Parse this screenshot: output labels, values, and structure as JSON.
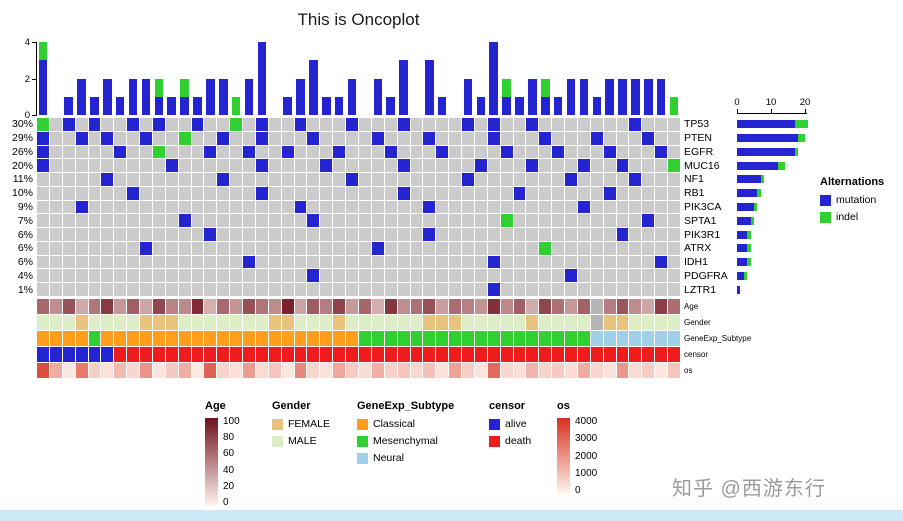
{
  "title": "This is Oncoplot",
  "watermark": "知乎 @西游东行",
  "colors": {
    "mutation": "#2424d0",
    "indel": "#30d030",
    "empty": "#cbcbcb",
    "na": "#b5b5b5",
    "classical": "#ff9e1b",
    "mesenchymal": "#30d030",
    "neural": "#9fd0e8",
    "female": "#e8c37e",
    "male": "#ddeec6",
    "alive": "#2424d0",
    "death": "#ee1c1c",
    "age_high": "#70101c",
    "age_low": "#fff5f0",
    "os_high": "#d7301f",
    "os_low": "#fff5f0",
    "footer_strip": "#cde9f8"
  },
  "legends": {
    "alternations": {
      "title": "Alternations",
      "items": [
        {
          "label": "mutation",
          "color_key": "mutation"
        },
        {
          "label": "indel",
          "color_key": "indel"
        }
      ]
    },
    "age": {
      "title": "Age",
      "ticks": [
        100,
        80,
        60,
        40,
        20,
        0
      ]
    },
    "gender": {
      "title": "Gender",
      "items": [
        {
          "label": "FEMALE",
          "color_key": "female"
        },
        {
          "label": "MALE",
          "color_key": "male"
        }
      ]
    },
    "subtype": {
      "title": "GeneExp_Subtype",
      "items": [
        {
          "label": "Classical",
          "color_key": "classical"
        },
        {
          "label": "Mesenchymal",
          "color_key": "mesenchymal"
        },
        {
          "label": "Neural",
          "color_key": "neural"
        }
      ]
    },
    "censor": {
      "title": "censor",
      "items": [
        {
          "label": "alive",
          "color_key": "alive"
        },
        {
          "label": "death",
          "color_key": "death"
        }
      ]
    },
    "os": {
      "title": "os",
      "ticks": [
        4000,
        3000,
        2000,
        1000,
        0
      ]
    }
  },
  "chart_data": {
    "type": "heatmap",
    "subtype": "oncoplot",
    "genes": [
      "TP53",
      "PTEN",
      "EGFR",
      "MUC16",
      "NF1",
      "RB1",
      "PIK3CA",
      "SPTA1",
      "PIK3R1",
      "ATRX",
      "IDH1",
      "PDGFRA",
      "LZTR1"
    ],
    "gene_percentages": [
      "30%",
      "29%",
      "26%",
      "20%",
      "11%",
      "10%",
      "9%",
      "7%",
      "6%",
      "6%",
      "6%",
      "4%",
      "1%"
    ],
    "n_samples": 50,
    "cell_encoding": {
      "0": "none",
      "1": "mutation",
      "2": "indel"
    },
    "matrix": [
      [
        2,
        0,
        1,
        0,
        1,
        0,
        0,
        1,
        0,
        1,
        0,
        0,
        1,
        0,
        0,
        2,
        0,
        1,
        0,
        0,
        1,
        0,
        0,
        0,
        1,
        0,
        0,
        0,
        1,
        0,
        0,
        0,
        0,
        1,
        0,
        1,
        0,
        0,
        1,
        0,
        0,
        0,
        0,
        0,
        0,
        0,
        1,
        0,
        0,
        0
      ],
      [
        1,
        0,
        0,
        1,
        0,
        1,
        0,
        0,
        1,
        0,
        0,
        2,
        0,
        0,
        1,
        0,
        0,
        1,
        0,
        0,
        0,
        1,
        0,
        0,
        0,
        0,
        1,
        0,
        0,
        0,
        1,
        0,
        0,
        0,
        0,
        1,
        0,
        0,
        0,
        1,
        0,
        0,
        0,
        1,
        0,
        0,
        0,
        1,
        0,
        0
      ],
      [
        1,
        0,
        0,
        0,
        0,
        0,
        1,
        0,
        0,
        2,
        0,
        0,
        0,
        1,
        0,
        0,
        1,
        0,
        0,
        1,
        0,
        0,
        0,
        1,
        0,
        0,
        0,
        1,
        0,
        0,
        0,
        1,
        0,
        0,
        0,
        0,
        1,
        0,
        0,
        0,
        1,
        0,
        0,
        0,
        1,
        0,
        0,
        0,
        1,
        0
      ],
      [
        1,
        0,
        0,
        0,
        0,
        0,
        0,
        0,
        0,
        0,
        1,
        0,
        0,
        0,
        0,
        0,
        0,
        1,
        0,
        0,
        0,
        0,
        1,
        0,
        0,
        0,
        0,
        0,
        1,
        0,
        0,
        0,
        0,
        0,
        1,
        0,
        0,
        0,
        1,
        0,
        0,
        0,
        1,
        0,
        0,
        1,
        0,
        0,
        0,
        2
      ],
      [
        0,
        0,
        0,
        0,
        0,
        1,
        0,
        0,
        0,
        0,
        0,
        0,
        0,
        0,
        1,
        0,
        0,
        0,
        0,
        0,
        0,
        0,
        0,
        0,
        1,
        0,
        0,
        0,
        0,
        0,
        0,
        0,
        0,
        1,
        0,
        0,
        0,
        0,
        0,
        0,
        0,
        1,
        0,
        0,
        0,
        0,
        1,
        0,
        0,
        0
      ],
      [
        0,
        0,
        0,
        0,
        0,
        0,
        0,
        1,
        0,
        0,
        0,
        0,
        0,
        0,
        0,
        0,
        0,
        1,
        0,
        0,
        0,
        0,
        0,
        0,
        0,
        0,
        0,
        0,
        1,
        0,
        0,
        0,
        0,
        0,
        0,
        0,
        0,
        1,
        0,
        0,
        0,
        0,
        0,
        0,
        1,
        0,
        0,
        0,
        0,
        0
      ],
      [
        0,
        0,
        0,
        1,
        0,
        0,
        0,
        0,
        0,
        0,
        0,
        0,
        0,
        0,
        0,
        0,
        0,
        0,
        0,
        0,
        1,
        0,
        0,
        0,
        0,
        0,
        0,
        0,
        0,
        0,
        1,
        0,
        0,
        0,
        0,
        0,
        0,
        0,
        0,
        0,
        0,
        0,
        1,
        0,
        0,
        0,
        0,
        0,
        0,
        0
      ],
      [
        0,
        0,
        0,
        0,
        0,
        0,
        0,
        0,
        0,
        0,
        0,
        1,
        0,
        0,
        0,
        0,
        0,
        0,
        0,
        0,
        0,
        1,
        0,
        0,
        0,
        0,
        0,
        0,
        0,
        0,
        0,
        0,
        0,
        0,
        0,
        0,
        2,
        0,
        0,
        0,
        0,
        0,
        0,
        0,
        0,
        0,
        0,
        1,
        0,
        0
      ],
      [
        0,
        0,
        0,
        0,
        0,
        0,
        0,
        0,
        0,
        0,
        0,
        0,
        0,
        1,
        0,
        0,
        0,
        0,
        0,
        0,
        0,
        0,
        0,
        0,
        0,
        0,
        0,
        0,
        0,
        0,
        1,
        0,
        0,
        0,
        0,
        0,
        0,
        0,
        0,
        0,
        0,
        0,
        0,
        0,
        0,
        1,
        0,
        0,
        0,
        0
      ],
      [
        0,
        0,
        0,
        0,
        0,
        0,
        0,
        0,
        1,
        0,
        0,
        0,
        0,
        0,
        0,
        0,
        0,
        0,
        0,
        0,
        0,
        0,
        0,
        0,
        0,
        0,
        1,
        0,
        0,
        0,
        0,
        0,
        0,
        0,
        0,
        0,
        0,
        0,
        0,
        2,
        0,
        0,
        0,
        0,
        0,
        0,
        0,
        0,
        0,
        0
      ],
      [
        0,
        0,
        0,
        0,
        0,
        0,
        0,
        0,
        0,
        0,
        0,
        0,
        0,
        0,
        0,
        0,
        1,
        0,
        0,
        0,
        0,
        0,
        0,
        0,
        0,
        0,
        0,
        0,
        0,
        0,
        0,
        0,
        0,
        0,
        0,
        1,
        0,
        0,
        0,
        0,
        0,
        0,
        0,
        0,
        0,
        0,
        0,
        0,
        1,
        0
      ],
      [
        0,
        0,
        0,
        0,
        0,
        0,
        0,
        0,
        0,
        0,
        0,
        0,
        0,
        0,
        0,
        0,
        0,
        0,
        0,
        0,
        0,
        1,
        0,
        0,
        0,
        0,
        0,
        0,
        0,
        0,
        0,
        0,
        0,
        0,
        0,
        0,
        0,
        0,
        0,
        0,
        0,
        1,
        0,
        0,
        0,
        0,
        0,
        0,
        0,
        0
      ],
      [
        0,
        0,
        0,
        0,
        0,
        0,
        0,
        0,
        0,
        0,
        0,
        0,
        0,
        0,
        0,
        0,
        0,
        0,
        0,
        0,
        0,
        0,
        0,
        0,
        0,
        0,
        0,
        0,
        0,
        0,
        0,
        0,
        0,
        0,
        0,
        1,
        0,
        0,
        0,
        0,
        0,
        0,
        0,
        0,
        0,
        0,
        0,
        0,
        0,
        0
      ]
    ],
    "top_bar": {
      "type": "bar",
      "stacked": true,
      "note": "per-sample alteration count = column sums of matrix (blue=mutation, green=indel)",
      "ylim": [
        0,
        4
      ],
      "yticks": [
        4,
        2,
        0
      ]
    },
    "right_bar": {
      "type": "bar",
      "orientation": "horizontal",
      "xlim": [
        0,
        22
      ],
      "xticks": [
        0,
        10,
        20
      ],
      "series": [
        {
          "name": "mutation",
          "values": [
            17,
            18,
            17,
            12,
            7,
            6,
            5,
            4,
            3,
            3,
            3,
            2,
            1
          ]
        },
        {
          "name": "indel",
          "values": [
            4,
            2,
            1,
            2,
            1,
            1,
            1,
            1,
            1,
            1,
            1,
            1,
            0
          ]
        }
      ]
    },
    "annotations": {
      "tracks": [
        "Age",
        "Gender",
        "GeneExp_Subtype",
        "censor",
        "os"
      ],
      "Age": {
        "kind": "gradient",
        "domain": [
          0,
          100
        ],
        "values": [
          62,
          45,
          71,
          33,
          55,
          82,
          41,
          66,
          35,
          76,
          50,
          47,
          88,
          30,
          61,
          42,
          73,
          56,
          46,
          92,
          36,
          67,
          52,
          78,
          40,
          63,
          31,
          84,
          45,
          57,
          72,
          38,
          60,
          51,
          43,
          86,
          47,
          65,
          32,
          77,
          58,
          41,
          64,
          null,
          52,
          70,
          46,
          34,
          81,
          59
        ]
      },
      "Gender": {
        "kind": "categorical",
        "values": [
          "MALE",
          "MALE",
          "MALE",
          "FEMALE",
          "MALE",
          "MALE",
          "MALE",
          "MALE",
          "FEMALE",
          "FEMALE",
          "FEMALE",
          "MALE",
          "MALE",
          "MALE",
          "MALE",
          "MALE",
          "MALE",
          "MALE",
          "FEMALE",
          "FEMALE",
          "MALE",
          "MALE",
          "MALE",
          "FEMALE",
          "MALE",
          "MALE",
          "MALE",
          "MALE",
          "MALE",
          "MALE",
          "FEMALE",
          "FEMALE",
          "FEMALE",
          "MALE",
          "MALE",
          "MALE",
          "MALE",
          "MALE",
          "FEMALE",
          "MALE",
          "MALE",
          "MALE",
          "MALE",
          "NA",
          "FEMALE",
          "FEMALE",
          "MALE",
          "MALE",
          "MALE",
          "MALE"
        ]
      },
      "GeneExp_Subtype": {
        "kind": "categorical",
        "values": [
          "Classical",
          "Classical",
          "Classical",
          "Classical",
          "Mesenchymal",
          "Classical",
          "Classical",
          "Classical",
          "Classical",
          "Classical",
          "Classical",
          "Classical",
          "Classical",
          "Classical",
          "Classical",
          "Classical",
          "Classical",
          "Classical",
          "Classical",
          "Classical",
          "Classical",
          "Classical",
          "Classical",
          "Classical",
          "Classical",
          "Mesenchymal",
          "Mesenchymal",
          "Mesenchymal",
          "Mesenchymal",
          "Mesenchymal",
          "Mesenchymal",
          "Mesenchymal",
          "Mesenchymal",
          "Mesenchymal",
          "Mesenchymal",
          "Mesenchymal",
          "Mesenchymal",
          "Mesenchymal",
          "Mesenchymal",
          "Mesenchymal",
          "Mesenchymal",
          "Mesenchymal",
          "Mesenchymal",
          "Neural",
          "Neural",
          "Neural",
          "Neural",
          "Neural",
          "Neural",
          "Neural"
        ]
      },
      "censor": {
        "kind": "categorical",
        "values": [
          "alive",
          "alive",
          "alive",
          "alive",
          "alive",
          "alive",
          "death",
          "death",
          "death",
          "death",
          "death",
          "death",
          "death",
          "death",
          "death",
          "death",
          "death",
          "death",
          "death",
          "death",
          "death",
          "death",
          "death",
          "death",
          "death",
          "death",
          "death",
          "death",
          "death",
          "death",
          "death",
          "death",
          "death",
          "death",
          "death",
          "death",
          "death",
          "death",
          "death",
          "death",
          "death",
          "death",
          "death",
          "death",
          "death",
          "death",
          "death",
          "death",
          "death",
          "death"
        ]
      },
      "os": {
        "kind": "gradient",
        "domain": [
          0,
          4000
        ],
        "values": [
          3400,
          1500,
          300,
          2500,
          800,
          400,
          1200,
          600,
          2000,
          350,
          900,
          1500,
          250,
          3000,
          700,
          450,
          1800,
          550,
          1000,
          300,
          2200,
          650,
          400,
          1600,
          850,
          500,
          1400,
          750,
          950,
          600,
          1100,
          400,
          1700,
          800,
          350,
          2800,
          600,
          450,
          1300,
          700,
          900,
          500,
          1500,
          650,
          400,
          1900,
          550,
          800,
          300,
          1000
        ]
      }
    }
  }
}
